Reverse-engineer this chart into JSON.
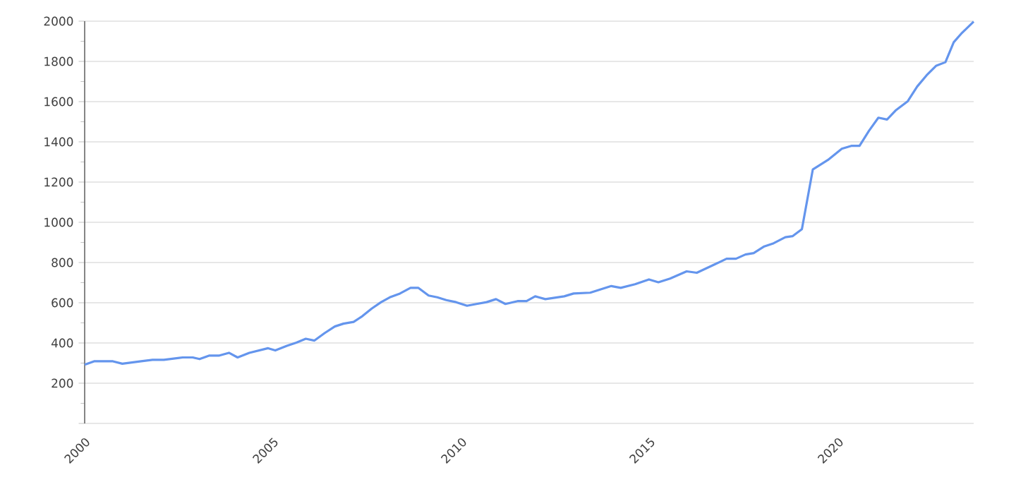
{
  "chart_data": {
    "type": "line",
    "x": [
      2000.0,
      2000.25,
      2000.75,
      2001.0,
      2001.5,
      2001.8,
      2002.1,
      2002.6,
      2002.87,
      2003.05,
      2003.3,
      2003.56,
      2003.83,
      2004.06,
      2004.37,
      2004.87,
      2005.06,
      2005.37,
      2005.62,
      2005.87,
      2006.1,
      2006.37,
      2006.64,
      2006.87,
      2007.14,
      2007.37,
      2007.62,
      2007.87,
      2008.1,
      2008.37,
      2008.65,
      2008.86,
      2009.13,
      2009.36,
      2009.6,
      2009.86,
      2010.15,
      2010.4,
      2010.67,
      2010.92,
      2011.17,
      2011.49,
      2011.73,
      2011.96,
      2012.23,
      2012.73,
      2012.98,
      2013.42,
      2013.98,
      2014.23,
      2014.61,
      2014.98,
      2015.23,
      2015.54,
      2015.98,
      2016.25,
      2016.73,
      2017.04,
      2017.29,
      2017.54,
      2017.76,
      2018.04,
      2018.29,
      2018.6,
      2018.79,
      2019.04,
      2019.33,
      2019.73,
      2020.1,
      2020.35,
      2020.57,
      2020.82,
      2021.07,
      2021.3,
      2021.54,
      2021.85,
      2022.1,
      2022.35,
      2022.6,
      2022.85,
      2023.07,
      2023.29,
      2023.6
    ],
    "series": [
      {
        "color": "#6495ed",
        "values": [
          292,
          309,
          309,
          297,
          309,
          316,
          316,
          328,
          328,
          320,
          337,
          337,
          351,
          328,
          351,
          374,
          363,
          386,
          402,
          421,
          412,
          449,
          482,
          496,
          505,
          533,
          571,
          603,
          627,
          646,
          674,
          674,
          636,
          627,
          613,
          603,
          585,
          594,
          603,
          618,
          594,
          608,
          608,
          632,
          618,
          632,
          646,
          650,
          683,
          674,
          692,
          716,
          702,
          720,
          756,
          749,
          791,
          819,
          819,
          840,
          847,
          880,
          896,
          926,
          931,
          966,
          1263,
          1310,
          1366,
          1380,
          1380,
          1455,
          1520,
          1511,
          1558,
          1602,
          1675,
          1731,
          1778,
          1796,
          1895,
          1942,
          1998
        ]
      }
    ],
    "xlim": [
      2000,
      2023.6
    ],
    "xticks": [
      2000,
      2005,
      2010,
      2015,
      2020
    ],
    "ylim": [
      0,
      2000
    ],
    "yticks": [
      {
        "value": 0,
        "label": null
      },
      200,
      400,
      600,
      800,
      1000,
      1200,
      1400,
      1600,
      1800,
      2000
    ],
    "grid": "y",
    "marker": "none",
    "line_style": "solid"
  }
}
